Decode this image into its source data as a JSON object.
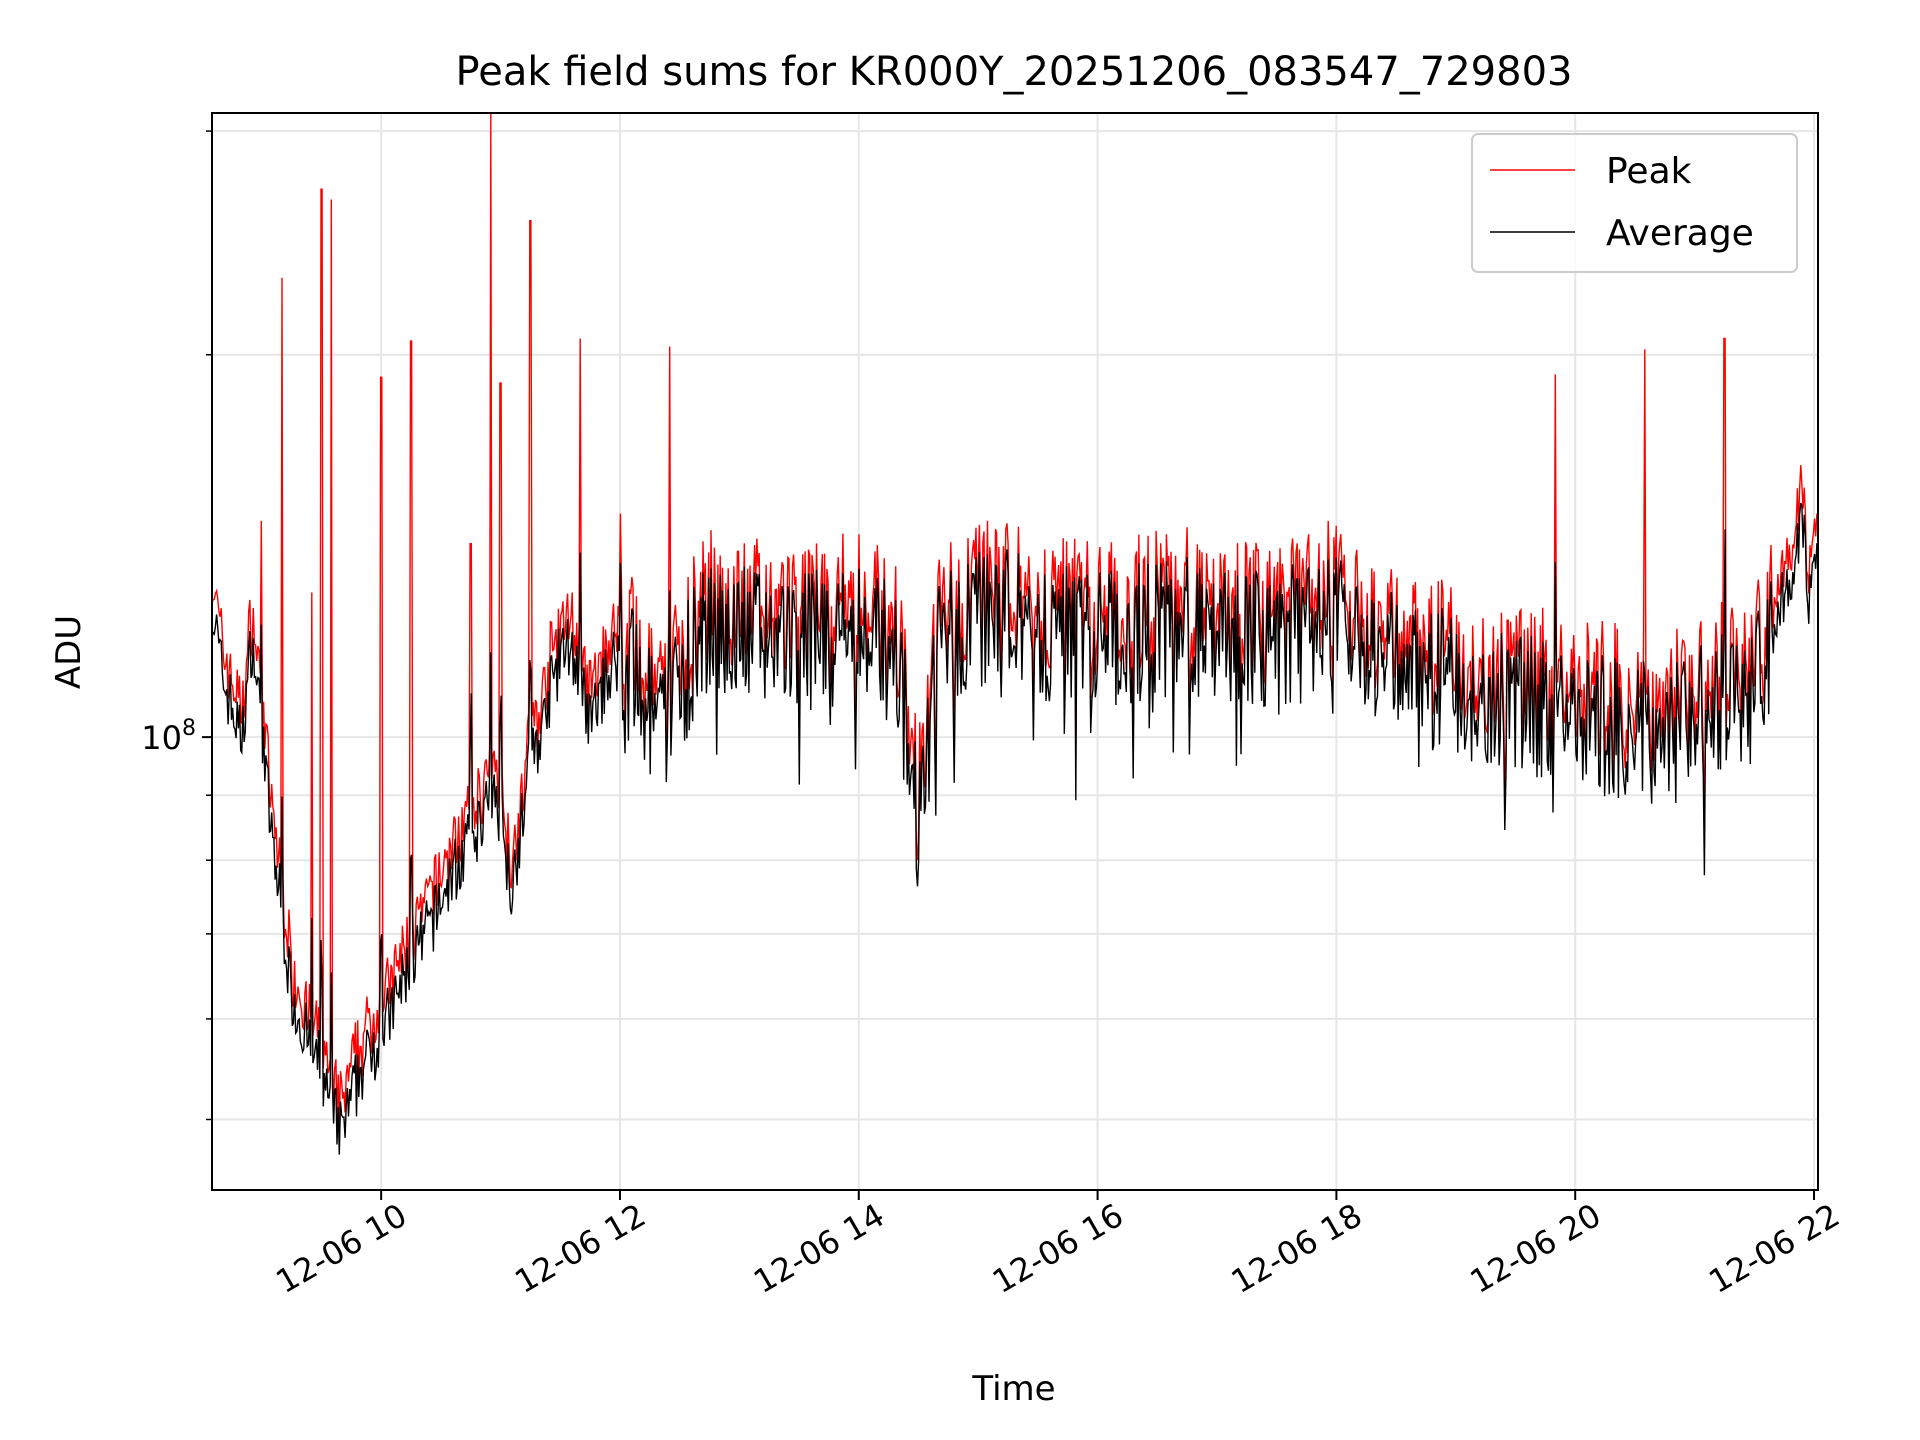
{
  "chart_data": {
    "type": "line",
    "title": "Peak field sums for KR000Y_20251206_083547_729803",
    "xlabel": "Time",
    "ylabel": "ADU",
    "y_scale": "log",
    "grid": true,
    "legend_position": "top-right",
    "x_range": [
      "2025-12-06 08:35",
      "2025-12-06 22:02"
    ],
    "ylim": [
      44000000.0,
      310000000.0
    ],
    "x_ticks": [
      "12-06 10",
      "12-06 12",
      "12-06 14",
      "12-06 16",
      "12-06 18",
      "12-06 20",
      "12-06 22"
    ],
    "x_tick_times": [
      "2025-12-06 10:00",
      "2025-12-06 12:00",
      "2025-12-06 14:00",
      "2025-12-06 16:00",
      "2025-12-06 18:00",
      "2025-12-06 20:00",
      "2025-12-06 22:00"
    ],
    "y_ticks": [
      {
        "label": "10",
        "exponent": "8",
        "value": 100000000.0
      }
    ],
    "y_minor_ticks": [
      50000000.0,
      60000000.0,
      70000000.0,
      80000000.0,
      90000000.0,
      200000000.0,
      300000000.0
    ],
    "series": [
      {
        "name": "Peak",
        "color": "#ff0000",
        "points": [
          [
            "2025-12-06 08:35",
            130000000.0
          ],
          [
            "2025-12-06 08:40",
            115000000.0
          ],
          [
            "2025-12-06 08:45",
            108000000.0
          ],
          [
            "2025-12-06 08:50",
            102000000.0
          ],
          [
            "2025-12-06 08:55",
            122000000.0
          ],
          [
            "2025-12-06 09:00",
            105000000.0
          ],
          [
            "2025-12-06 09:05",
            85000000.0
          ],
          [
            "2025-12-06 09:10",
            75000000.0
          ],
          [
            "2025-12-06 09:15",
            64000000.0
          ],
          [
            "2025-12-06 09:20",
            61000000.0
          ],
          [
            "2025-12-06 09:25",
            58000000.0
          ],
          [
            "2025-12-06 09:30",
            56000000.0
          ],
          [
            "2025-12-06 09:35",
            52000000.0
          ],
          [
            "2025-12-06 09:40",
            50000000.0
          ],
          [
            "2025-12-06 09:45",
            53000000.0
          ],
          [
            "2025-12-06 09:50",
            56000000.0
          ],
          [
            "2025-12-06 09:55",
            58000000.0
          ],
          [
            "2025-12-06 10:00",
            60000000.0
          ],
          [
            "2025-12-06 10:05",
            62000000.0
          ],
          [
            "2025-12-06 10:10",
            65000000.0
          ],
          [
            "2025-12-06 10:15",
            68000000.0
          ],
          [
            "2025-12-06 10:20",
            70000000.0
          ],
          [
            "2025-12-06 10:25",
            73000000.0
          ],
          [
            "2025-12-06 10:30",
            76000000.0
          ],
          [
            "2025-12-06 10:35",
            79000000.0
          ],
          [
            "2025-12-06 10:40",
            82000000.0
          ],
          [
            "2025-12-06 10:45",
            85000000.0
          ],
          [
            "2025-12-06 10:50",
            88000000.0
          ],
          [
            "2025-12-06 10:55",
            92000000.0
          ],
          [
            "2025-12-06 11:00",
            90000000.0
          ],
          [
            "2025-12-06 11:05",
            78000000.0
          ],
          [
            "2025-12-06 11:10",
            86000000.0
          ],
          [
            "2025-12-06 11:15",
            98000000.0
          ],
          [
            "2025-12-06 11:20",
            102000000.0
          ],
          [
            "2025-12-06 11:25",
            112000000.0
          ],
          [
            "2025-12-06 11:30",
            118000000.0
          ],
          [
            "2025-12-06 11:35",
            122000000.0
          ],
          [
            "2025-12-06 11:40",
            112000000.0
          ],
          [
            "2025-12-06 11:45",
            105000000.0
          ],
          [
            "2025-12-06 11:50",
            110000000.0
          ],
          [
            "2025-12-06 11:55",
            116000000.0
          ],
          [
            "2025-12-06 12:00",
            120000000.0
          ],
          [
            "2025-12-06 12:10",
            110000000.0
          ],
          [
            "2025-12-06 12:20",
            103000000.0
          ],
          [
            "2025-12-06 12:30",
            115000000.0
          ],
          [
            "2025-12-06 12:40",
            122000000.0
          ],
          [
            "2025-12-06 12:50",
            126000000.0
          ],
          [
            "2025-12-06 13:00",
            124000000.0
          ],
          [
            "2025-12-06 13:30",
            122000000.0
          ],
          [
            "2025-12-06 14:00",
            125000000.0
          ],
          [
            "2025-12-06 14:20",
            118000000.0
          ],
          [
            "2025-12-06 14:30",
            86000000.0
          ],
          [
            "2025-12-06 14:40",
            122000000.0
          ],
          [
            "2025-12-06 15:00",
            128000000.0
          ],
          [
            "2025-12-06 15:30",
            125000000.0
          ],
          [
            "2025-12-06 16:00",
            122000000.0
          ],
          [
            "2025-12-06 16:30",
            126000000.0
          ],
          [
            "2025-12-06 17:00",
            124000000.0
          ],
          [
            "2025-12-06 17:30",
            122000000.0
          ],
          [
            "2025-12-06 18:00",
            128000000.0
          ],
          [
            "2025-12-06 18:30",
            118000000.0
          ],
          [
            "2025-12-06 19:00",
            114000000.0
          ],
          [
            "2025-12-06 19:30",
            110000000.0
          ],
          [
            "2025-12-06 20:00",
            107000000.0
          ],
          [
            "2025-12-06 20:30",
            104000000.0
          ],
          [
            "2025-12-06 21:00",
            106000000.0
          ],
          [
            "2025-12-06 21:30",
            112000000.0
          ],
          [
            "2025-12-06 21:45",
            132000000.0
          ],
          [
            "2025-12-06 21:55",
            152000000.0
          ],
          [
            "2025-12-06 21:57",
            128000000.0
          ],
          [
            "2025-12-06 22:02",
            140000000.0
          ]
        ],
        "spikes": [
          [
            "2025-12-06 09:00",
            148000000.0
          ],
          [
            "2025-12-06 09:10",
            230000000.0
          ],
          [
            "2025-12-06 09:25",
            130000000.0
          ],
          [
            "2025-12-06 09:30",
            270000000.0
          ],
          [
            "2025-12-06 09:35",
            265000000.0
          ],
          [
            "2025-12-06 10:00",
            192000000.0
          ],
          [
            "2025-12-06 10:15",
            205000000.0
          ],
          [
            "2025-12-06 10:45",
            142000000.0
          ],
          [
            "2025-12-06 10:55",
            310000000.0
          ],
          [
            "2025-12-06 11:00",
            190000000.0
          ],
          [
            "2025-12-06 11:15",
            255000000.0
          ],
          [
            "2025-12-06 11:40",
            206000000.0
          ],
          [
            "2025-12-06 12:00",
            150000000.0
          ],
          [
            "2025-12-06 12:25",
            203000000.0
          ],
          [
            "2025-12-06 19:50",
            193000000.0
          ],
          [
            "2025-12-06 20:35",
            202000000.0
          ],
          [
            "2025-12-06 21:15",
            206000000.0
          ]
        ]
      },
      {
        "name": "Average",
        "color": "#000000"
      }
    ]
  }
}
